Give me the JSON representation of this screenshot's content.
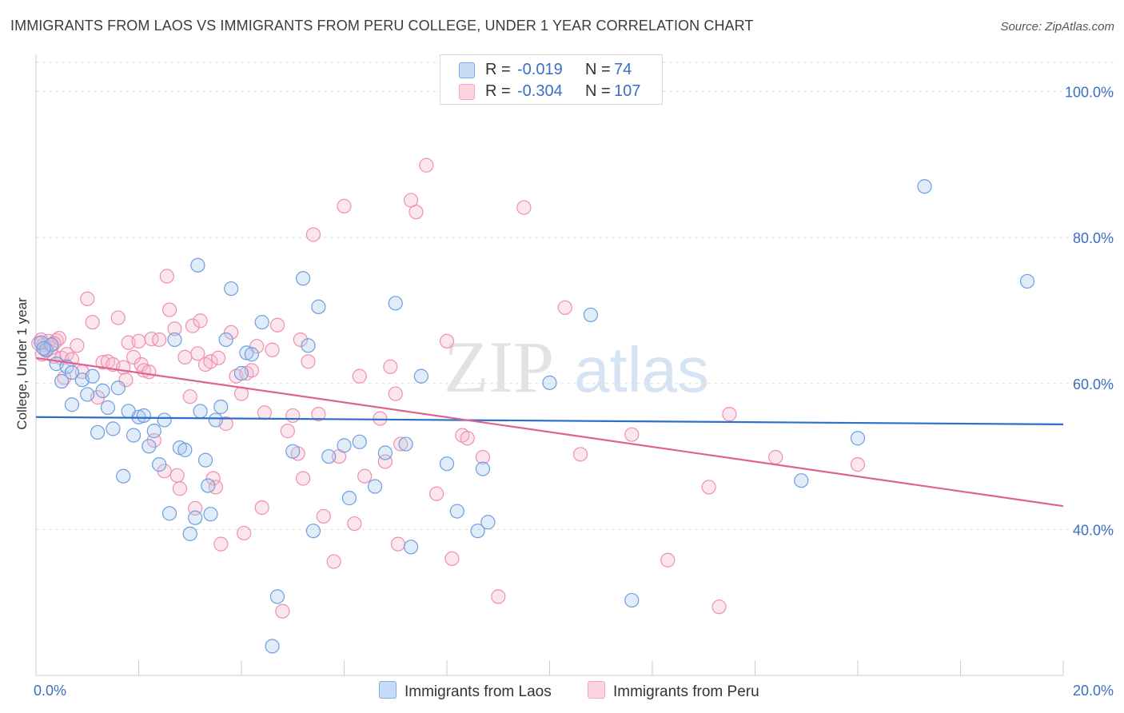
{
  "title": "IMMIGRANTS FROM LAOS VS IMMIGRANTS FROM PERU COLLEGE, UNDER 1 YEAR CORRELATION CHART",
  "source": "Source: ZipAtlas.com",
  "watermark": {
    "zip": "ZIP",
    "atlas": "atlas"
  },
  "legend": {
    "r_label": "R =",
    "n_label": "N =",
    "laos": {
      "r": "-0.019",
      "n": "74"
    },
    "peru": {
      "r": "-0.304",
      "n": "107"
    }
  },
  "chart_data": {
    "type": "scatter",
    "title": "IMMIGRANTS FROM LAOS VS IMMIGRANTS FROM PERU COLLEGE, UNDER 1 YEAR CORRELATION CHART",
    "xlabel": "",
    "ylabel": "College, Under 1 year",
    "xlim": [
      0,
      20
    ],
    "ylim": [
      20,
      104
    ],
    "x_tick_labels": [
      "0.0%",
      "20.0%"
    ],
    "y_tick_labels": [
      "40.0%",
      "60.0%",
      "80.0%",
      "100.0%"
    ],
    "y_ticks": [
      40,
      60,
      80,
      100
    ],
    "grid": true,
    "colors": {
      "laos": "#7eaee6",
      "peru": "#f2a3bf",
      "laos_line": "#2d6fcc",
      "peru_line": "#e0628f"
    },
    "series": [
      {
        "name": "Immigrants from Laos",
        "color": "#7eaee6",
        "trend": {
          "x": [
            0,
            20
          ],
          "y": [
            55.4,
            54.4
          ]
        },
        "points": [
          [
            0.1,
            65.6
          ],
          [
            0.2,
            64.6
          ],
          [
            0.3,
            65.3
          ],
          [
            0.4,
            62.7
          ],
          [
            0.5,
            60.3
          ],
          [
            0.6,
            62.3
          ],
          [
            0.7,
            61.5
          ],
          [
            0.7,
            57.1
          ],
          [
            0.9,
            60.5
          ],
          [
            1.0,
            58.5
          ],
          [
            1.1,
            61.0
          ],
          [
            1.2,
            53.3
          ],
          [
            1.3,
            59.0
          ],
          [
            1.4,
            56.7
          ],
          [
            1.5,
            53.8
          ],
          [
            1.6,
            59.4
          ],
          [
            1.7,
            47.3
          ],
          [
            1.8,
            56.2
          ],
          [
            1.9,
            52.9
          ],
          [
            2.0,
            55.4
          ],
          [
            2.1,
            55.6
          ],
          [
            2.2,
            51.4
          ],
          [
            2.3,
            53.5
          ],
          [
            2.4,
            48.9
          ],
          [
            2.5,
            55.0
          ],
          [
            2.6,
            42.2
          ],
          [
            2.7,
            66.0
          ],
          [
            2.8,
            51.2
          ],
          [
            2.9,
            50.9
          ],
          [
            3.0,
            39.4
          ],
          [
            3.1,
            41.6
          ],
          [
            3.15,
            76.2
          ],
          [
            3.2,
            56.2
          ],
          [
            3.3,
            49.5
          ],
          [
            3.35,
            46.0
          ],
          [
            3.4,
            42.1
          ],
          [
            3.5,
            55.0
          ],
          [
            3.6,
            56.8
          ],
          [
            3.7,
            66.0
          ],
          [
            3.8,
            73.0
          ],
          [
            4.0,
            61.4
          ],
          [
            4.1,
            64.2
          ],
          [
            4.2,
            64.0
          ],
          [
            4.4,
            68.4
          ],
          [
            4.7,
            30.8
          ],
          [
            4.6,
            24.0
          ],
          [
            5.0,
            50.7
          ],
          [
            5.2,
            74.4
          ],
          [
            5.3,
            65.2
          ],
          [
            5.4,
            39.8
          ],
          [
            5.5,
            70.5
          ],
          [
            5.7,
            50.0
          ],
          [
            6.0,
            51.5
          ],
          [
            6.1,
            44.3
          ],
          [
            6.3,
            52.0
          ],
          [
            6.6,
            45.9
          ],
          [
            6.8,
            50.5
          ],
          [
            7.0,
            71.0
          ],
          [
            7.2,
            51.7
          ],
          [
            7.3,
            37.6
          ],
          [
            7.5,
            61.0
          ],
          [
            8.0,
            49.0
          ],
          [
            8.2,
            42.5
          ],
          [
            8.6,
            39.8
          ],
          [
            8.7,
            48.3
          ],
          [
            8.8,
            41.0
          ],
          [
            10.0,
            60.1
          ],
          [
            10.8,
            69.4
          ],
          [
            11.6,
            30.3
          ],
          [
            14.9,
            46.7
          ],
          [
            16.0,
            52.5
          ],
          [
            17.3,
            87.0
          ],
          [
            19.3,
            74.0
          ],
          [
            0.15,
            64.8
          ]
        ]
      },
      {
        "name": "Immigrants from Peru",
        "color": "#f2a3bf",
        "trend": {
          "x": [
            0,
            20
          ],
          "y": [
            63.5,
            43.2
          ]
        },
        "points": [
          [
            0.1,
            66.0
          ],
          [
            0.15,
            65.3
          ],
          [
            0.2,
            64.5
          ],
          [
            0.25,
            65.8
          ],
          [
            0.3,
            64.9
          ],
          [
            0.35,
            63.7
          ],
          [
            0.4,
            65.9
          ],
          [
            0.45,
            66.2
          ],
          [
            0.5,
            63.5
          ],
          [
            0.55,
            60.8
          ],
          [
            0.6,
            64.0
          ],
          [
            0.7,
            63.3
          ],
          [
            0.8,
            65.2
          ],
          [
            0.9,
            61.6
          ],
          [
            1.0,
            71.6
          ],
          [
            1.1,
            68.4
          ],
          [
            1.2,
            58.1
          ],
          [
            1.3,
            62.9
          ],
          [
            1.4,
            63.0
          ],
          [
            1.5,
            62.6
          ],
          [
            1.6,
            69.0
          ],
          [
            1.7,
            62.2
          ],
          [
            1.75,
            60.5
          ],
          [
            1.8,
            65.6
          ],
          [
            1.9,
            63.6
          ],
          [
            2.0,
            65.8
          ],
          [
            2.05,
            62.6
          ],
          [
            2.1,
            61.8
          ],
          [
            2.2,
            61.6
          ],
          [
            2.25,
            66.1
          ],
          [
            2.3,
            52.2
          ],
          [
            2.4,
            66.0
          ],
          [
            2.5,
            48.0
          ],
          [
            2.55,
            74.7
          ],
          [
            2.6,
            70.1
          ],
          [
            2.7,
            67.5
          ],
          [
            2.75,
            47.4
          ],
          [
            2.8,
            45.6
          ],
          [
            2.9,
            63.6
          ],
          [
            3.0,
            58.2
          ],
          [
            3.05,
            67.9
          ],
          [
            3.1,
            42.9
          ],
          [
            3.15,
            64.1
          ],
          [
            3.2,
            68.6
          ],
          [
            3.3,
            62.6
          ],
          [
            3.4,
            63.0
          ],
          [
            3.45,
            47.0
          ],
          [
            3.5,
            45.8
          ],
          [
            3.55,
            63.5
          ],
          [
            3.6,
            38.0
          ],
          [
            3.7,
            54.5
          ],
          [
            3.8,
            67.0
          ],
          [
            3.9,
            61.0
          ],
          [
            4.0,
            58.6
          ],
          [
            4.05,
            39.5
          ],
          [
            4.1,
            61.4
          ],
          [
            4.2,
            61.8
          ],
          [
            4.3,
            65.1
          ],
          [
            4.4,
            43.0
          ],
          [
            4.45,
            56.0
          ],
          [
            4.6,
            64.6
          ],
          [
            4.7,
            68.0
          ],
          [
            4.8,
            28.8
          ],
          [
            4.9,
            53.5
          ],
          [
            5.0,
            55.6
          ],
          [
            5.1,
            50.4
          ],
          [
            5.15,
            66.0
          ],
          [
            5.2,
            47.0
          ],
          [
            5.3,
            63.0
          ],
          [
            5.4,
            80.4
          ],
          [
            5.5,
            55.8
          ],
          [
            5.6,
            41.8
          ],
          [
            5.8,
            35.6
          ],
          [
            5.9,
            50.0
          ],
          [
            6.0,
            84.3
          ],
          [
            6.2,
            40.8
          ],
          [
            6.3,
            61.0
          ],
          [
            6.4,
            47.3
          ],
          [
            6.7,
            55.2
          ],
          [
            6.8,
            49.3
          ],
          [
            6.9,
            62.3
          ],
          [
            7.0,
            58.6
          ],
          [
            7.05,
            38.0
          ],
          [
            7.1,
            51.7
          ],
          [
            7.3,
            85.1
          ],
          [
            7.4,
            83.5
          ],
          [
            7.6,
            89.9
          ],
          [
            7.8,
            44.9
          ],
          [
            8.0,
            65.8
          ],
          [
            8.1,
            36.0
          ],
          [
            8.3,
            52.9
          ],
          [
            8.4,
            52.5
          ],
          [
            8.7,
            49.9
          ],
          [
            9.0,
            30.8
          ],
          [
            9.5,
            84.1
          ],
          [
            10.3,
            70.4
          ],
          [
            10.6,
            50.3
          ],
          [
            11.6,
            53.0
          ],
          [
            12.3,
            35.8
          ],
          [
            13.1,
            45.8
          ],
          [
            13.3,
            29.4
          ],
          [
            13.5,
            55.8
          ],
          [
            14.4,
            49.9
          ],
          [
            16.0,
            48.9
          ],
          [
            0.05,
            65.5
          ],
          [
            0.12,
            64.0
          ],
          [
            0.35,
            65.5
          ]
        ]
      }
    ]
  },
  "legend_bottom": {
    "laos_label": "Immigrants from Laos",
    "peru_label": "Immigrants from Peru"
  }
}
